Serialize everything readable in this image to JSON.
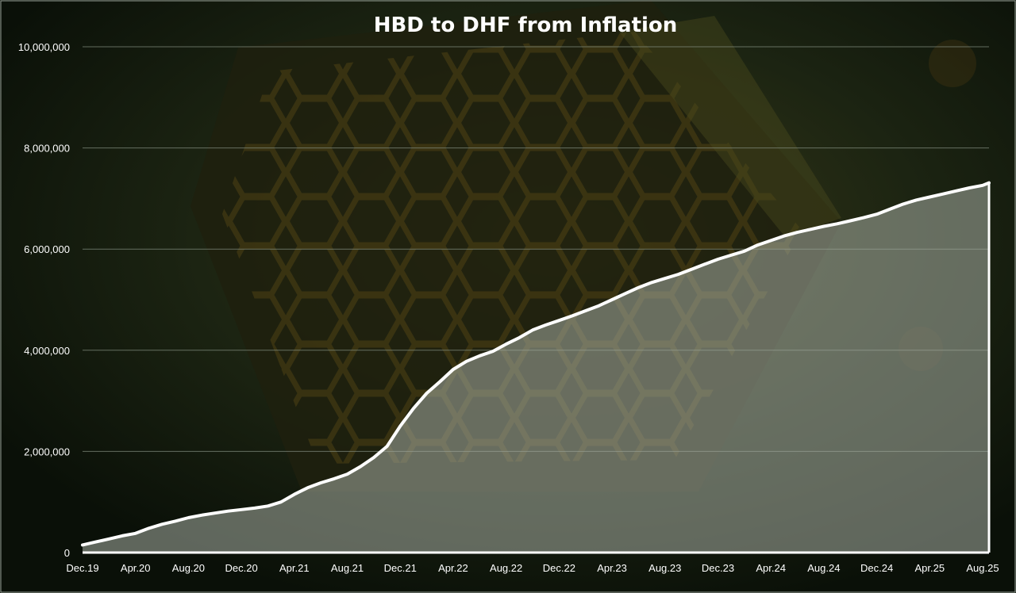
{
  "chart_data": {
    "type": "area",
    "title": "HBD to DHF from Inflation",
    "xlabel": "",
    "ylabel": "",
    "ylim": [
      0,
      10000000
    ],
    "yticks": [
      0,
      2000000,
      4000000,
      6000000,
      8000000,
      10000000
    ],
    "ytick_labels": [
      "0",
      "2,000,000",
      "4,000,000",
      "6,000,000",
      "8,000,000",
      "10,000,000"
    ],
    "xtick_labels": [
      "Dec.19",
      "Apr.20",
      "Aug.20",
      "Dec.20",
      "Apr.21",
      "Aug.21",
      "Dec.21",
      "Apr.22",
      "Aug.22",
      "Dec.22",
      "Apr.23",
      "Aug.23",
      "Dec.23",
      "Apr.24",
      "Aug.24",
      "Dec.24",
      "Apr.25",
      "Aug.25"
    ],
    "grid": "horizontal",
    "legend": "none",
    "line_color": "#ffffff",
    "fill_color": "#a5ada3",
    "series": [
      {
        "x": [
          "Dec.19",
          "Jan.20",
          "Feb.20",
          "Mar.20",
          "Apr.20",
          "May.20",
          "Jun.20",
          "Jul.20",
          "Aug.20",
          "Sep.20",
          "Oct.20",
          "Nov.20",
          "Dec.20",
          "Jan.21",
          "Feb.21",
          "Mar.21",
          "Apr.21",
          "May.21",
          "Jun.21",
          "Jul.21",
          "Aug.21",
          "Sep.21",
          "Oct.21",
          "Nov.21",
          "Dec.21",
          "Jan.22",
          "Feb.22",
          "Mar.22",
          "Apr.22",
          "May.22",
          "Jun.22",
          "Jul.22",
          "Aug.22",
          "Sep.22",
          "Oct.22",
          "Nov.22",
          "Dec.22",
          "Jan.23",
          "Feb.23",
          "Mar.23",
          "Apr.23",
          "May.23",
          "Jun.23",
          "Jul.23",
          "Aug.23",
          "Sep.23",
          "Oct.23",
          "Nov.23",
          "Dec.23",
          "Jan.24",
          "Feb.24",
          "Mar.24",
          "Apr.24",
          "May.24",
          "Jun.24",
          "Jul.24",
          "Aug.24",
          "Sep.24",
          "Oct.24",
          "Nov.24",
          "Dec.24",
          "Jan.25",
          "Feb.25",
          "Mar.25",
          "Apr.25",
          "May.25",
          "Jun.25",
          "Jul.25",
          "Aug.25",
          "Sep.25"
        ],
        "values": [
          150000,
          210000,
          270000,
          330000,
          380000,
          480000,
          560000,
          620000,
          690000,
          740000,
          780000,
          820000,
          850000,
          880000,
          920000,
          1000000,
          1150000,
          1280000,
          1380000,
          1460000,
          1550000,
          1700000,
          1880000,
          2100000,
          2500000,
          2850000,
          3150000,
          3380000,
          3620000,
          3780000,
          3890000,
          3980000,
          4120000,
          4250000,
          4400000,
          4500000,
          4590000,
          4680000,
          4780000,
          4880000,
          5000000,
          5120000,
          5240000,
          5340000,
          5420000,
          5500000,
          5600000,
          5700000,
          5800000,
          5880000,
          5960000,
          6080000,
          6170000,
          6260000,
          6330000,
          6390000,
          6450000,
          6500000,
          6560000,
          6620000,
          6690000,
          6790000,
          6890000,
          6970000,
          7030000,
          7090000,
          7150000,
          7210000,
          7260000,
          7310000
        ]
      }
    ]
  }
}
